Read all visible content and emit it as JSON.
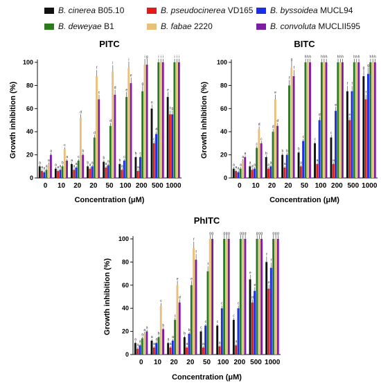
{
  "legend": [
    {
      "species": "B. cinerea",
      "strain": "B05.10",
      "color": "#111111"
    },
    {
      "species": "B. pseudocinerea",
      "strain": "VD165",
      "color": "#e01b1b"
    },
    {
      "species": "B. byssoidea",
      "strain": "MUCL94",
      "color": "#1a2fe0"
    },
    {
      "species": "B. deweyae",
      "strain": "B1",
      "color": "#2e7a1f"
    },
    {
      "species": "B. fabae",
      "strain": "2220",
      "color": "#e8c07a"
    },
    {
      "species": "B. convoluta",
      "strain": "MUCLII595",
      "color": "#7a1fa0"
    }
  ],
  "chart_data": [
    {
      "type": "bar",
      "title": "PITC",
      "xlabel": "Concentration (μM)",
      "ylabel": "Growth inhibition (%)",
      "ylim": [
        0,
        100
      ],
      "yticks": [
        0,
        20,
        40,
        60,
        80,
        100
      ],
      "categories": [
        "0",
        "10",
        "20",
        "20",
        "50",
        "100",
        "200",
        "500",
        "1000"
      ],
      "series": [
        {
          "values": [
            10,
            8,
            12,
            10,
            14,
            12,
            18,
            60,
            70
          ],
          "letters": [
            "a",
            "a",
            "a",
            "b",
            "b",
            "b",
            "b",
            "e",
            "e"
          ]
        },
        {
          "values": [
            6,
            6,
            7,
            8,
            9,
            7,
            6,
            30,
            55
          ],
          "letters": [
            "a",
            "a",
            "a",
            "a",
            "a",
            "a",
            "a",
            "c",
            "f"
          ]
        },
        {
          "values": [
            5,
            7,
            9,
            10,
            11,
            15,
            18,
            38,
            55
          ],
          "letters": [
            "a",
            "a",
            "a",
            "a",
            "a",
            "c",
            "c",
            "d",
            "g"
          ]
        },
        {
          "values": [
            7,
            10,
            15,
            35,
            45,
            70,
            75,
            100,
            100
          ],
          "letters": [
            "a",
            "b",
            "c",
            "d",
            "d",
            "e",
            "g",
            "i",
            "i"
          ]
        },
        {
          "values": [
            12,
            25,
            52,
            88,
            92,
            95,
            98,
            100,
            100
          ],
          "letters": [
            "a",
            "c",
            "d",
            "f",
            "i",
            "i",
            "i",
            "i",
            "i"
          ]
        },
        {
          "values": [
            20,
            15,
            20,
            68,
            72,
            82,
            98,
            100,
            100
          ],
          "letters": [
            "a",
            "a",
            "b",
            "c",
            "d",
            "e",
            "g",
            "i",
            "i"
          ]
        }
      ]
    },
    {
      "type": "bar",
      "title": "BITC",
      "xlabel": "Concentration (μM)",
      "ylabel": "Growth inhibition (%)",
      "ylim": [
        0,
        100
      ],
      "yticks": [
        0,
        20,
        40,
        60,
        80,
        100
      ],
      "categories": [
        "0",
        "10",
        "20",
        "20",
        "50",
        "100",
        "200",
        "500",
        "1000"
      ],
      "series": [
        {
          "values": [
            8,
            10,
            18,
            20,
            22,
            30,
            35,
            75,
            88
          ],
          "letters": [
            "a",
            "a",
            "b",
            "b",
            "b",
            "c",
            "c",
            "f",
            "g"
          ]
        },
        {
          "values": [
            6,
            7,
            8,
            9,
            10,
            12,
            12,
            50,
            68
          ],
          "letters": [
            "a",
            "a",
            "a",
            "a",
            "a",
            "a",
            "a",
            "e",
            "f"
          ]
        },
        {
          "values": [
            5,
            8,
            10,
            20,
            32,
            50,
            58,
            75,
            90
          ],
          "letters": [
            "a",
            "a",
            "a",
            "b",
            "c",
            "d",
            "e",
            "f",
            "g"
          ]
        },
        {
          "values": [
            8,
            26,
            40,
            80,
            100,
            100,
            100,
            100,
            100
          ],
          "letters": [
            "a",
            "c",
            "d",
            "f",
            "h",
            "h",
            "h",
            "h",
            "h"
          ]
        },
        {
          "values": [
            15,
            42,
            68,
            95,
            100,
            100,
            100,
            100,
            100
          ],
          "letters": [
            "a",
            "d",
            "e",
            "g",
            "h",
            "h",
            "h",
            "h",
            "h"
          ]
        },
        {
          "values": [
            18,
            30,
            45,
            88,
            100,
            100,
            100,
            100,
            100
          ],
          "letters": [
            "a",
            "c",
            "d",
            "f",
            "h",
            "h",
            "h",
            "h",
            "h"
          ]
        }
      ]
    },
    {
      "type": "bar",
      "title": "PhITC",
      "xlabel": "Concentration (μM)",
      "ylabel": "Growth inhibition (%)",
      "ylim": [
        0,
        100
      ],
      "yticks": [
        0,
        20,
        40,
        60,
        80,
        100
      ],
      "categories": [
        "0",
        "10",
        "20",
        "20",
        "50",
        "100",
        "200",
        "500",
        "1000"
      ],
      "series": [
        {
          "values": [
            10,
            12,
            10,
            15,
            20,
            25,
            30,
            65,
            80
          ],
          "letters": [
            "a",
            "a",
            "a",
            "b",
            "c",
            "c",
            "c",
            "e",
            "f"
          ]
        },
        {
          "values": [
            5,
            6,
            6,
            6,
            6,
            7,
            8,
            45,
            57
          ],
          "letters": [
            "a",
            "a",
            "a",
            "a",
            "a",
            "a",
            "a",
            "d",
            "e"
          ]
        },
        {
          "values": [
            8,
            10,
            12,
            18,
            25,
            40,
            40,
            55,
            75
          ],
          "letters": [
            "a",
            "a",
            "a",
            "b",
            "c",
            "c",
            "c",
            "e",
            "f"
          ]
        },
        {
          "values": [
            14,
            15,
            30,
            60,
            72,
            100,
            100,
            100,
            100
          ],
          "letters": [
            "a",
            "b",
            "c",
            "e",
            "f",
            "g",
            "g",
            "g",
            "g"
          ]
        },
        {
          "values": [
            18,
            42,
            60,
            92,
            100,
            100,
            100,
            100,
            100
          ],
          "letters": [
            "a",
            "c",
            "e",
            "f",
            "g",
            "g",
            "g",
            "g",
            "g"
          ]
        },
        {
          "values": [
            20,
            22,
            45,
            82,
            100,
            100,
            100,
            100,
            100
          ],
          "letters": [
            "a",
            "b",
            "d",
            "f",
            "g",
            "g",
            "g",
            "g",
            "g"
          ]
        }
      ]
    }
  ]
}
